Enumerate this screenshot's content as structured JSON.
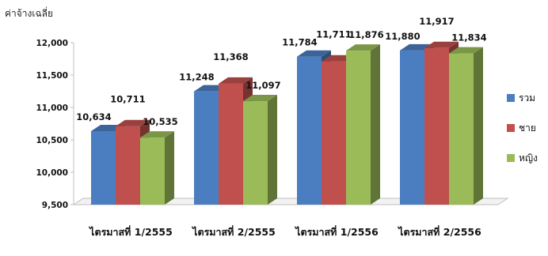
{
  "chart_data": {
    "type": "bar",
    "ylabel": "ค่าจ้างเฉลี่ย",
    "categories": [
      "ไตรมาสที่ 1/2555",
      "ไตรมาสที่ 2/2555",
      "ไตรมาสที่ 1/2556",
      "ไตรมาสที่ 2/2556"
    ],
    "series": [
      {
        "name": "รวม",
        "color": "#4A7EC0",
        "values": [
          10634,
          11248,
          11784,
          11880
        ]
      },
      {
        "name": "ชาย",
        "color": "#C0504D",
        "values": [
          10711,
          11368,
          11711,
          11917
        ]
      },
      {
        "name": "หญิง",
        "color": "#9BBB59",
        "values": [
          10535,
          11097,
          11876,
          11834
        ]
      }
    ],
    "data_labels": [
      [
        "10,634",
        "11,248",
        "11,784",
        "11,880"
      ],
      [
        "10,711",
        "11,368",
        "11,711",
        "11,917"
      ],
      [
        "10,535",
        "11,097",
        "11,876",
        "11,834"
      ]
    ],
    "ylim": [
      9500,
      12000
    ],
    "yticks": [
      9500,
      10000,
      10500,
      11000,
      11500,
      12000
    ],
    "ytick_labels": [
      "9,500",
      "10,000",
      "10,500",
      "11,000",
      "11,500",
      "12,000"
    ],
    "grid": false,
    "legend_position": "right",
    "style_3d": true
  }
}
